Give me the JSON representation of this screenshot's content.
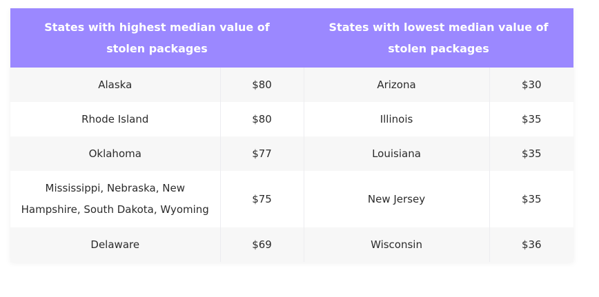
{
  "table": {
    "header_left": "States with highest median value of stolen packages",
    "header_right": "States with lowest median value of stolen packages",
    "rows": [
      {
        "high_state": "Alaska",
        "high_value": "$80",
        "low_state": "Arizona",
        "low_value": "$30"
      },
      {
        "high_state": "Rhode Island",
        "high_value": "$80",
        "low_state": "Illinois",
        "low_value": "$35"
      },
      {
        "high_state": "Oklahoma",
        "high_value": "$77",
        "low_state": "Louisiana",
        "low_value": "$35"
      },
      {
        "high_state": "Mississippi, Nebraska, New Hampshire, South Dakota, Wyoming",
        "high_value": "$75",
        "low_state": "New Jersey",
        "low_value": "$35"
      },
      {
        "high_state": "Delaware",
        "high_value": "$69",
        "low_state": "Wisconsin",
        "low_value": "$36"
      }
    ]
  },
  "colors": {
    "header_bg": "#9b88ff",
    "header_text": "#ffffff",
    "row_shade": "#f7f7f7"
  }
}
